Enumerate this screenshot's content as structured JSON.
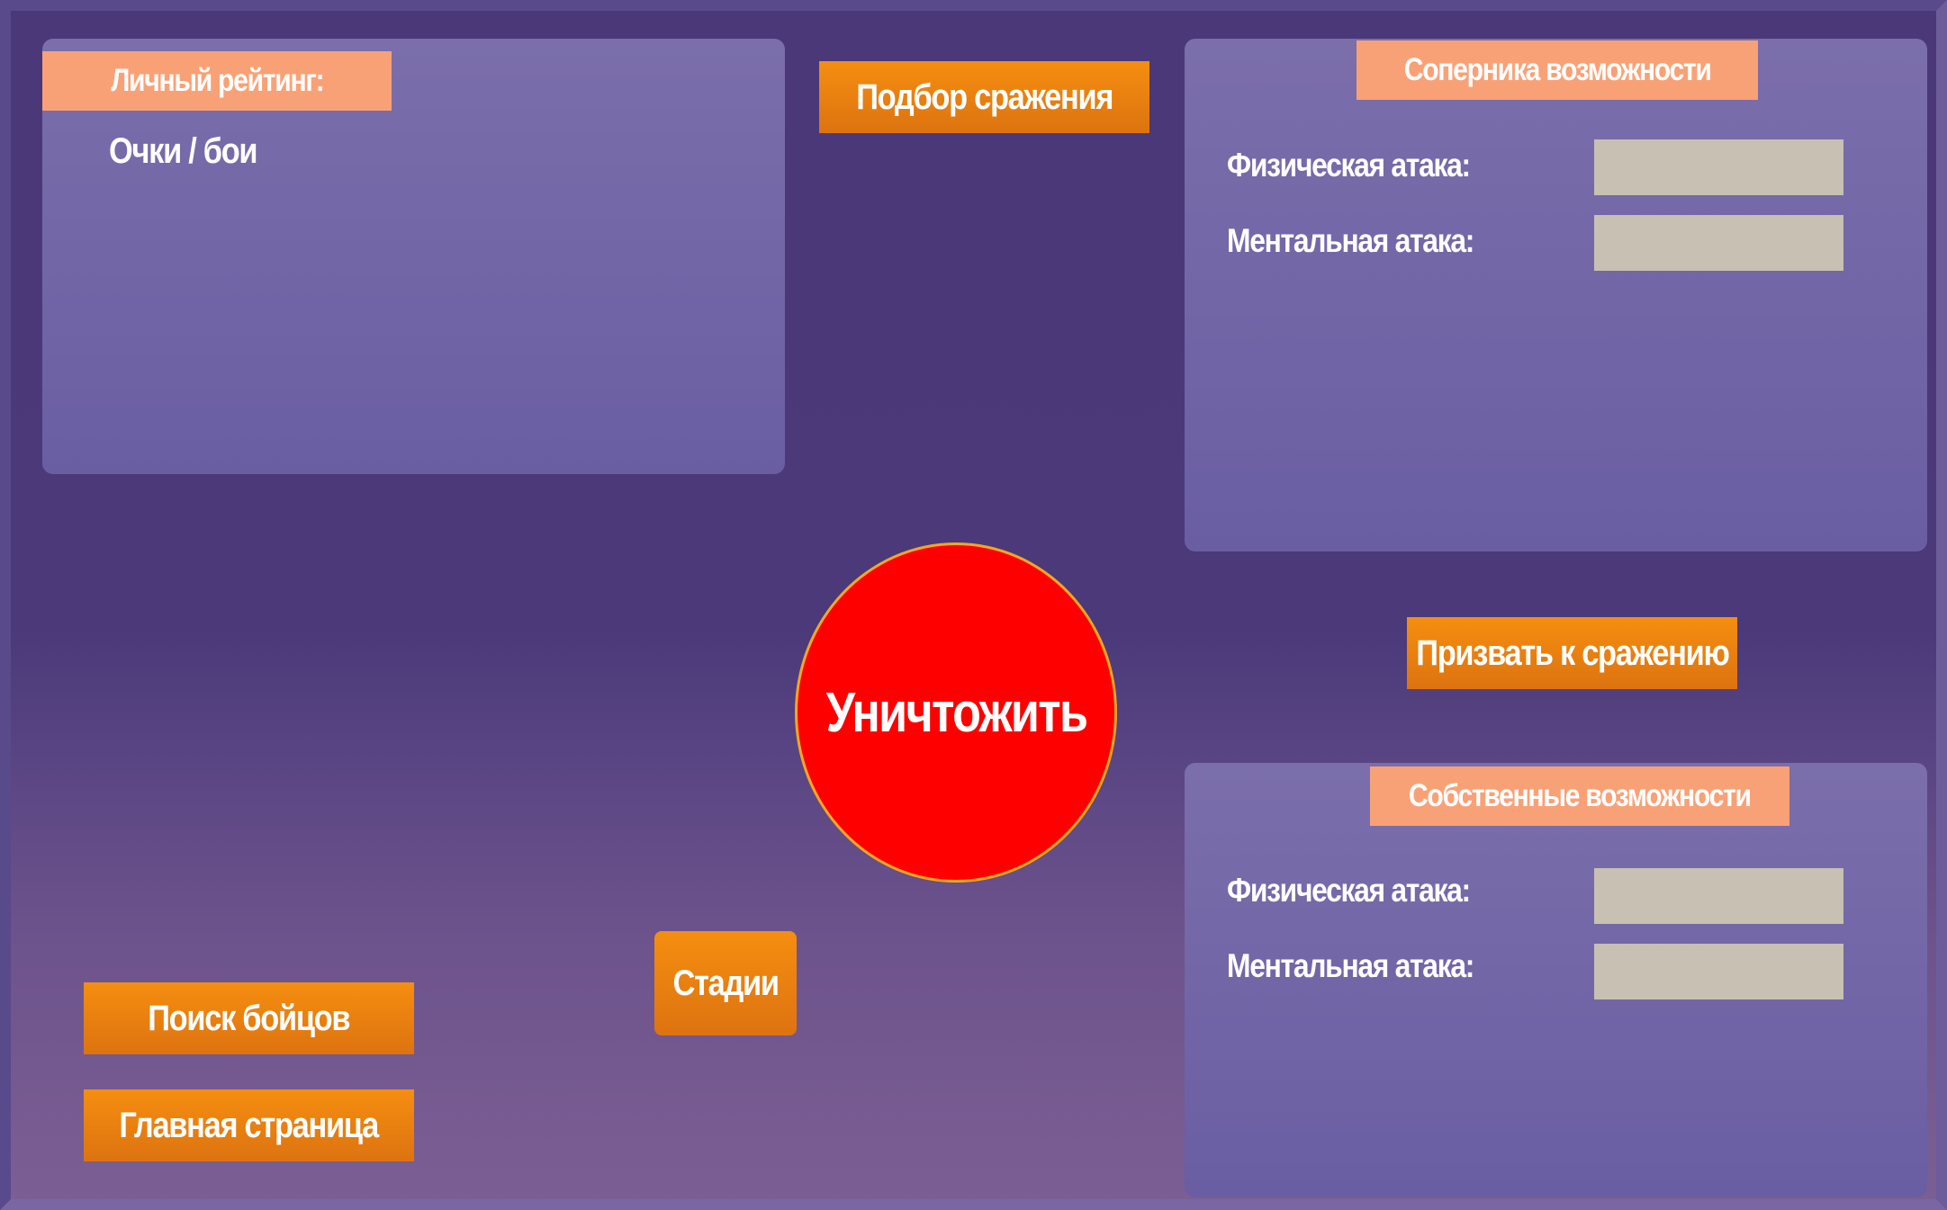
{
  "rating_panel": {
    "title": "Личный рейтинг:",
    "subtitle": "Очки / бои"
  },
  "opponent_panel": {
    "title": "Соперника возможности",
    "physical_label": "Физическая атака:",
    "physical_value": "",
    "mental_label": "Ментальная атака:",
    "mental_value": ""
  },
  "own_panel": {
    "title": "Собственные  возможности",
    "physical_label": "Физическая атака:",
    "physical_value": "",
    "mental_label": "Ментальная атака:",
    "mental_value": ""
  },
  "buttons": {
    "match": "Подбор сражения",
    "challenge": "Призвать к сражению",
    "destroy": "Уничтожить",
    "stages": "Стадии",
    "search": "Поиск бойцов",
    "home": "Главная страница"
  },
  "colors": {
    "button": "#f58e10",
    "header_tag": "#f9a176",
    "destroy": "#ff0000",
    "panel": "#7b6eab",
    "value_box": "#c8c0b2"
  }
}
